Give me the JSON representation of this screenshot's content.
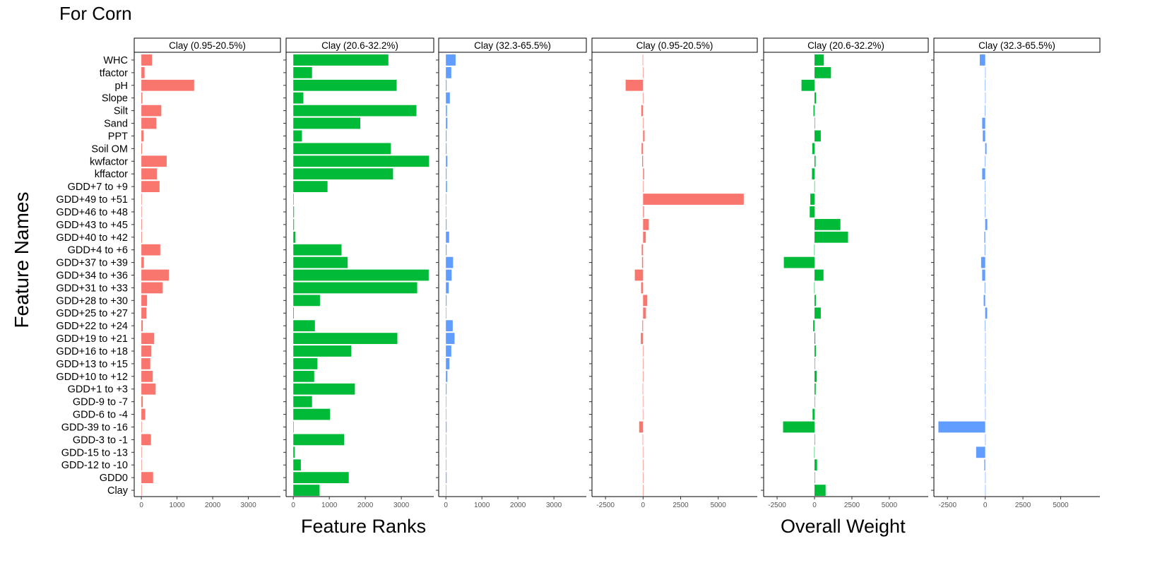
{
  "title": "For Corn",
  "ylabel": "Feature Names",
  "group_labels": {
    "ranks": "Feature Ranks",
    "weights": "Overall Weight"
  },
  "colors": {
    "facet1": "#F8766D",
    "facet2": "#00BA38",
    "facet3": "#619CFF"
  },
  "chart_data": [
    {
      "type": "bar",
      "orientation": "horizontal",
      "group": "Feature Ranks",
      "xlim": [
        -200,
        3900
      ],
      "xticks": [
        0,
        1000,
        2000,
        3000
      ],
      "grid": false,
      "categories": [
        "WHC",
        "tfactor",
        "pH",
        "Slope",
        "Silt",
        "Sand",
        "PPT",
        "Soil OM",
        "kwfactor",
        "kffactor",
        "GDD+7 to +9",
        "GDD+49 to +51",
        "GDD+46 to +48",
        "GDD+43 to +45",
        "GDD+40 to +42",
        "GDD+4 to +6",
        "GDD+37 to +39",
        "GDD+34 to +36",
        "GDD+31 to +33",
        "GDD+28 to +30",
        "GDD+25 to +27",
        "GDD+22 to +24",
        "GDD+19 to +21",
        "GDD+16 to +18",
        "GDD+13 to +15",
        "GDD+10 to +12",
        "GDD+1 to +3",
        "GDD-9 to -7",
        "GDD-6 to -4",
        "GDD-39 to -16",
        "GDD-3 to -1",
        "GDD-15 to -13",
        "GDD-12 to -10",
        "GDD0",
        "Clay"
      ],
      "facets": [
        {
          "name": "Clay (0.95-20.5%)",
          "color": "#F8766D",
          "values": [
            300,
            90,
            1480,
            30,
            560,
            420,
            60,
            20,
            710,
            440,
            510,
            5,
            5,
            15,
            15,
            530,
            70,
            770,
            600,
            160,
            140,
            40,
            360,
            280,
            250,
            320,
            400,
            40,
            110,
            10,
            270,
            5,
            5,
            330,
            10
          ]
        },
        {
          "name": "Clay (20.6-32.2%)",
          "color": "#00BA38",
          "values": [
            2640,
            520,
            2870,
            280,
            3420,
            1860,
            240,
            2710,
            3770,
            2770,
            950,
            10,
            20,
            20,
            60,
            1340,
            1510,
            3760,
            3440,
            740,
            15,
            600,
            2890,
            1610,
            670,
            580,
            1710,
            520,
            1020,
            10,
            1410,
            40,
            210,
            1540,
            730
          ]
        },
        {
          "name": "Clay (32.3-65.5%)",
          "color": "#619CFF",
          "values": [
            270,
            150,
            20,
            110,
            30,
            40,
            20,
            20,
            40,
            20,
            30,
            5,
            5,
            20,
            90,
            20,
            200,
            160,
            80,
            20,
            5,
            190,
            240,
            150,
            100,
            40,
            20,
            10,
            10,
            20,
            10,
            10,
            10,
            20,
            10
          ]
        }
      ]
    },
    {
      "type": "bar",
      "orientation": "horizontal",
      "group": "Overall Weight",
      "xlim": [
        -3400,
        7600
      ],
      "xticks": [
        -2500,
        0,
        2500,
        5000
      ],
      "grid": false,
      "categories": [
        "WHC",
        "tfactor",
        "pH",
        "Slope",
        "Silt",
        "Sand",
        "PPT",
        "Soil OM",
        "kwfactor",
        "kffactor",
        "GDD+7 to +9",
        "GDD+49 to +51",
        "GDD+46 to +48",
        "GDD+43 to +45",
        "GDD+40 to +42",
        "GDD+4 to +6",
        "GDD+37 to +39",
        "GDD+34 to +36",
        "GDD+31 to +33",
        "GDD+28 to +30",
        "GDD+25 to +27",
        "GDD+22 to +24",
        "GDD+19 to +21",
        "GDD+16 to +18",
        "GDD+13 to +15",
        "GDD+10 to +12",
        "GDD+1 to +3",
        "GDD-9 to -7",
        "GDD-6 to -4",
        "GDD-39 to -16",
        "GDD-3 to -1",
        "GDD-15 to -13",
        "GDD-12 to -10",
        "GDD0",
        "Clay"
      ],
      "facets": [
        {
          "name": "Clay (0.95-20.5%)",
          "color": "#F8766D",
          "values": [
            -30,
            10,
            -1160,
            20,
            -120,
            30,
            100,
            -100,
            -60,
            70,
            20,
            6700,
            60,
            380,
            180,
            -90,
            -70,
            -550,
            -130,
            280,
            190,
            -50,
            -150,
            20,
            20,
            30,
            -30,
            -20,
            -20,
            -260,
            -30,
            -20,
            10,
            -10,
            20
          ]
        },
        {
          "name": "Clay (20.6-32.2%)",
          "color": "#00BA38",
          "values": [
            620,
            1100,
            -870,
            110,
            -70,
            10,
            420,
            -150,
            70,
            -170,
            -10,
            -280,
            -320,
            1730,
            2240,
            -20,
            -2050,
            600,
            -20,
            90,
            420,
            -90,
            50,
            90,
            10,
            150,
            80,
            10,
            -130,
            -2100,
            20,
            -20,
            170,
            10,
            740
          ]
        },
        {
          "name": "Clay (32.3-65.5%)",
          "color": "#619CFF",
          "values": [
            -360,
            20,
            -20,
            10,
            -30,
            -200,
            -160,
            90,
            -30,
            -200,
            -30,
            -10,
            -30,
            140,
            -60,
            -40,
            -270,
            -200,
            -40,
            -100,
            130,
            -30,
            20,
            20,
            10,
            10,
            -20,
            10,
            10,
            -3100,
            10,
            -600,
            -60,
            20,
            10
          ]
        }
      ]
    }
  ]
}
